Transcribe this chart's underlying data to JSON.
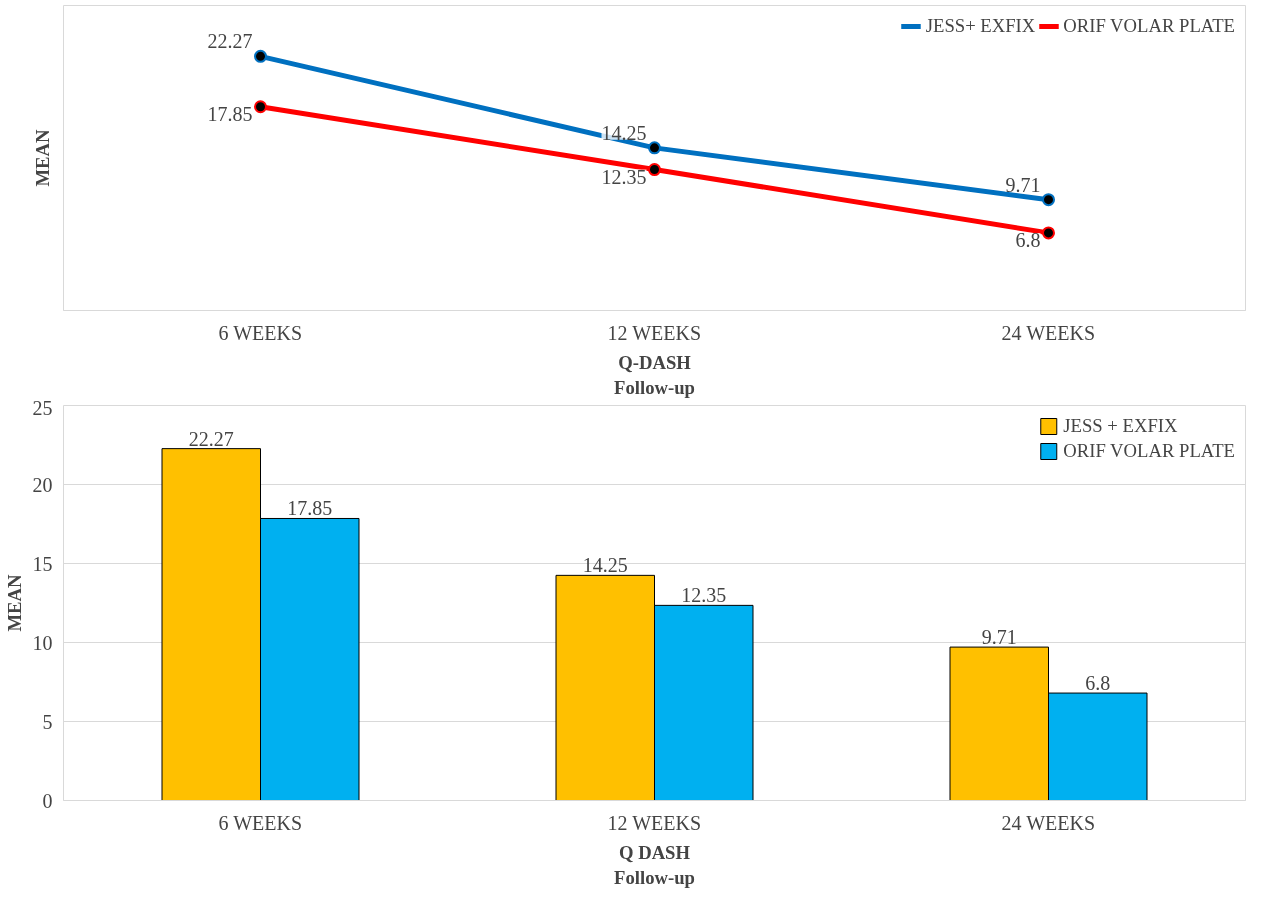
{
  "chart_data": [
    {
      "type": "line",
      "categories": [
        "6 WEEKS",
        "12 WEEKS",
        "24 WEEKS"
      ],
      "xlabel": "Q-DASH\nFollow-up",
      "ylabel": "MEAN",
      "data_labels": true,
      "legend": "top right",
      "marker": "circle",
      "line_style": "solid",
      "grid": false,
      "series": [
        {
          "name": "JESS+ EXFIX",
          "color": "#0070c0",
          "values": [
            22.27,
            14.25,
            9.71
          ]
        },
        {
          "name": "ORIF VOLAR PLATE",
          "color": "#ff0000",
          "values": [
            17.85,
            12.35,
            6.8
          ]
        }
      ]
    },
    {
      "type": "bar",
      "categories": [
        "6 WEEKS",
        "12 WEEKS",
        "24 WEEKS"
      ],
      "xlabel": "Q DASH\nFollow-up",
      "ylabel": "MEAN",
      "data_labels": true,
      "legend": "top right",
      "grid": "y",
      "ylim": [
        0,
        25
      ],
      "yticks": [
        0,
        5,
        10,
        15,
        20,
        25
      ],
      "series": [
        {
          "name": "JESS + EXFIX",
          "color": "#ffc000",
          "values": [
            22.27,
            14.25,
            9.71
          ]
        },
        {
          "name": "ORIF VOLAR PLATE",
          "color": "#00b0f0",
          "values": [
            17.85,
            12.35,
            6.8
          ]
        }
      ]
    }
  ]
}
